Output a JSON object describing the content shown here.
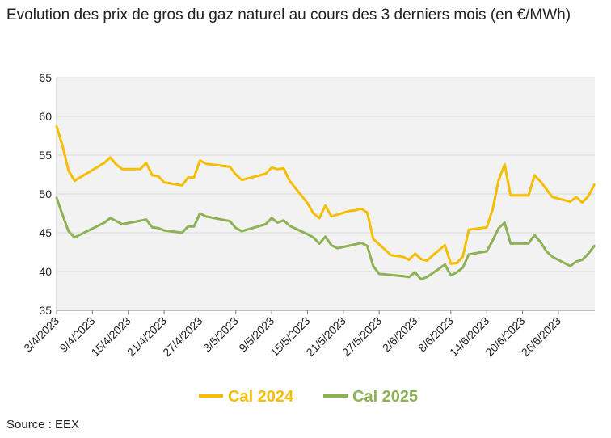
{
  "title": "Evolution des prix de gros du gaz naturel au cours des 3 derniers mois (en €/MWh)",
  "source": "Source : EEX",
  "colors": {
    "cal2024": "#F5BE00",
    "cal2025": "#8DB254",
    "grid": "#d9d9d9",
    "plot_bg": "#f2f2f2"
  },
  "chart_data": {
    "type": "line",
    "title": "Evolution des prix de gros du gaz naturel au cours des 3 derniers mois (en €/MWh)",
    "xlabel": "",
    "ylabel": "",
    "ylim": [
      35,
      65
    ],
    "yticks": [
      "35",
      "40",
      "45",
      "50",
      "55",
      "60",
      "65"
    ],
    "xlim": [
      "2023-04-03",
      "2023-06-30"
    ],
    "xtick_labels": [
      "3/4/2023",
      "9/4/2023",
      "15/4/2023",
      "21/4/2023",
      "27/4/2023",
      "3/5/2023",
      "9/5/2023",
      "15/5/2023",
      "21/5/2023",
      "27/5/2023",
      "2/6/2023",
      "8/6/2023",
      "14/6/2023",
      "20/6/2023",
      "26/6/2023"
    ],
    "xtick_dates": [
      "2023-04-03",
      "2023-04-09",
      "2023-04-15",
      "2023-04-21",
      "2023-04-27",
      "2023-05-03",
      "2023-05-09",
      "2023-05-15",
      "2023-05-21",
      "2023-05-27",
      "2023-06-02",
      "2023-06-08",
      "2023-06-14",
      "2023-06-20",
      "2023-06-26"
    ],
    "grid": true,
    "legend_position": "bottom",
    "series": [
      {
        "name": "Cal 2024",
        "points": [
          [
            "2023-04-03",
            58.7
          ],
          [
            "2023-04-04",
            56.2
          ],
          [
            "2023-04-05",
            53.0
          ],
          [
            "2023-04-06",
            51.7
          ],
          [
            "2023-04-11",
            54.0
          ],
          [
            "2023-04-12",
            54.7
          ],
          [
            "2023-04-13",
            53.8
          ],
          [
            "2023-04-14",
            53.2
          ],
          [
            "2023-04-17",
            53.2
          ],
          [
            "2023-04-18",
            54.0
          ],
          [
            "2023-04-19",
            52.4
          ],
          [
            "2023-04-20",
            52.3
          ],
          [
            "2023-04-21",
            51.5
          ],
          [
            "2023-04-24",
            51.1
          ],
          [
            "2023-04-25",
            52.1
          ],
          [
            "2023-04-26",
            52.1
          ],
          [
            "2023-04-27",
            54.3
          ],
          [
            "2023-04-28",
            53.9
          ],
          [
            "2023-05-02",
            53.5
          ],
          [
            "2023-05-03",
            52.5
          ],
          [
            "2023-05-04",
            51.8
          ],
          [
            "2023-05-08",
            52.6
          ],
          [
            "2023-05-09",
            53.4
          ],
          [
            "2023-05-10",
            53.2
          ],
          [
            "2023-05-11",
            53.3
          ],
          [
            "2023-05-12",
            51.7
          ],
          [
            "2023-05-15",
            48.8
          ],
          [
            "2023-05-16",
            47.5
          ],
          [
            "2023-05-17",
            46.9
          ],
          [
            "2023-05-18",
            48.5
          ],
          [
            "2023-05-19",
            47.1
          ],
          [
            "2023-05-22",
            47.8
          ],
          [
            "2023-05-23",
            47.9
          ],
          [
            "2023-05-24",
            48.1
          ],
          [
            "2023-05-25",
            47.6
          ],
          [
            "2023-05-26",
            44.2
          ],
          [
            "2023-05-29",
            42.1
          ],
          [
            "2023-05-31",
            41.9
          ],
          [
            "2023-06-01",
            41.5
          ],
          [
            "2023-06-02",
            42.3
          ],
          [
            "2023-06-03",
            41.6
          ],
          [
            "2023-06-04",
            41.4
          ],
          [
            "2023-06-05",
            42.1
          ],
          [
            "2023-06-07",
            43.4
          ],
          [
            "2023-06-08",
            41.0
          ],
          [
            "2023-06-09",
            41.1
          ],
          [
            "2023-06-10",
            41.9
          ],
          [
            "2023-06-11",
            45.4
          ],
          [
            "2023-06-14",
            45.7
          ],
          [
            "2023-06-15",
            48.0
          ],
          [
            "2023-06-16",
            51.8
          ],
          [
            "2023-06-17",
            53.8
          ],
          [
            "2023-06-18",
            49.8
          ],
          [
            "2023-06-21",
            49.8
          ],
          [
            "2023-06-22",
            52.4
          ],
          [
            "2023-06-23",
            51.6
          ],
          [
            "2023-06-25",
            49.6
          ],
          [
            "2023-06-28",
            49.0
          ],
          [
            "2023-06-29",
            49.6
          ],
          [
            "2023-06-30",
            48.9
          ],
          [
            "2023-07-01",
            49.7
          ],
          [
            "2023-07-02",
            51.2
          ]
        ]
      },
      {
        "name": "Cal 2025",
        "points": [
          [
            "2023-04-03",
            49.5
          ],
          [
            "2023-04-04",
            47.3
          ],
          [
            "2023-04-05",
            45.2
          ],
          [
            "2023-04-06",
            44.4
          ],
          [
            "2023-04-11",
            46.3
          ],
          [
            "2023-04-12",
            46.9
          ],
          [
            "2023-04-13",
            46.5
          ],
          [
            "2023-04-14",
            46.1
          ],
          [
            "2023-04-18",
            46.7
          ],
          [
            "2023-04-19",
            45.7
          ],
          [
            "2023-04-20",
            45.6
          ],
          [
            "2023-04-21",
            45.3
          ],
          [
            "2023-04-24",
            45.0
          ],
          [
            "2023-04-25",
            45.8
          ],
          [
            "2023-04-26",
            45.8
          ],
          [
            "2023-04-27",
            47.5
          ],
          [
            "2023-04-28",
            47.1
          ],
          [
            "2023-05-02",
            46.5
          ],
          [
            "2023-05-03",
            45.6
          ],
          [
            "2023-05-04",
            45.2
          ],
          [
            "2023-05-08",
            46.1
          ],
          [
            "2023-05-09",
            46.9
          ],
          [
            "2023-05-10",
            46.3
          ],
          [
            "2023-05-11",
            46.6
          ],
          [
            "2023-05-12",
            45.9
          ],
          [
            "2023-05-15",
            44.8
          ],
          [
            "2023-05-16",
            44.4
          ],
          [
            "2023-05-17",
            43.6
          ],
          [
            "2023-05-18",
            44.5
          ],
          [
            "2023-05-19",
            43.4
          ],
          [
            "2023-05-20",
            43.0
          ],
          [
            "2023-05-23",
            43.5
          ],
          [
            "2023-05-24",
            43.7
          ],
          [
            "2023-05-25",
            43.3
          ],
          [
            "2023-05-26",
            40.7
          ],
          [
            "2023-05-27",
            39.7
          ],
          [
            "2023-05-31",
            39.4
          ],
          [
            "2023-06-01",
            39.3
          ],
          [
            "2023-06-02",
            39.9
          ],
          [
            "2023-06-03",
            39.0
          ],
          [
            "2023-06-04",
            39.3
          ],
          [
            "2023-06-05",
            39.8
          ],
          [
            "2023-06-07",
            40.9
          ],
          [
            "2023-06-08",
            39.5
          ],
          [
            "2023-06-09",
            39.9
          ],
          [
            "2023-06-10",
            40.5
          ],
          [
            "2023-06-11",
            42.2
          ],
          [
            "2023-06-14",
            42.6
          ],
          [
            "2023-06-15",
            44.0
          ],
          [
            "2023-06-16",
            45.6
          ],
          [
            "2023-06-17",
            46.3
          ],
          [
            "2023-06-18",
            43.6
          ],
          [
            "2023-06-21",
            43.6
          ],
          [
            "2023-06-22",
            44.7
          ],
          [
            "2023-06-23",
            43.8
          ],
          [
            "2023-06-24",
            42.6
          ],
          [
            "2023-06-25",
            41.9
          ],
          [
            "2023-06-28",
            40.7
          ],
          [
            "2023-06-29",
            41.3
          ],
          [
            "2023-06-30",
            41.5
          ],
          [
            "2023-07-01",
            42.3
          ],
          [
            "2023-07-02",
            43.3
          ]
        ]
      }
    ]
  }
}
